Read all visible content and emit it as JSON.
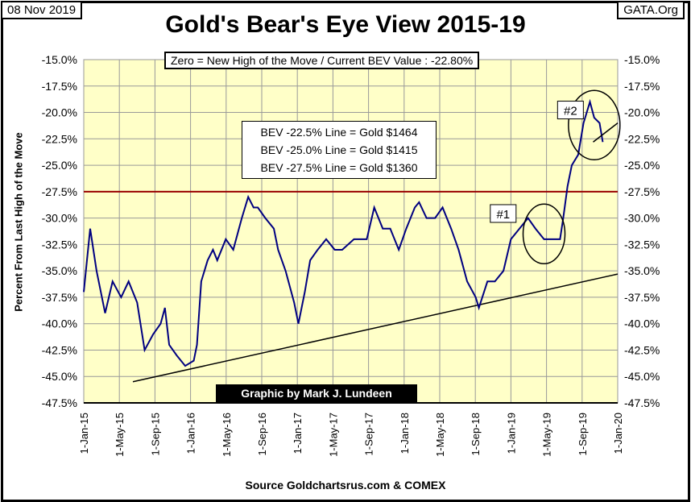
{
  "header": {
    "date": "08 Nov 2019",
    "site": "GATA.Org"
  },
  "info_box": "Zero = New High of the Move / Current  BEV Value : -22.80%",
  "bev_lines": [
    "BEV -22.5% Line = Gold $1464",
    "BEV -25.0% Line = Gold $1415",
    "BEV -27.5% Line = Gold $1360"
  ],
  "credit": "Graphic by Mark J. Lundeen",
  "chart_data": {
    "type": "line",
    "title": "Gold's Bear's Eye View 2015-19",
    "ylabel": "Percent From Last High of the Move",
    "xlabel": "Source Goldchartsrus.com & COMEX",
    "ylim": [
      -47.5,
      -15
    ],
    "yticks": [
      "-15.0%",
      "-17.5%",
      "-20.0%",
      "-22.5%",
      "-25.0%",
      "-27.5%",
      "-30.0%",
      "-32.5%",
      "-35.0%",
      "-37.5%",
      "-40.0%",
      "-42.5%",
      "-45.0%",
      "-47.5%"
    ],
    "xlim": [
      2015.0,
      2020.0
    ],
    "xticks": [
      "1-Jan-15",
      "1-May-15",
      "1-Sep-15",
      "1-Jan-16",
      "1-May-16",
      "1-Sep-16",
      "1-Jan-17",
      "1-May-17",
      "1-Sep-17",
      "1-Jan-18",
      "1-May-18",
      "1-Sep-18",
      "1-Jan-19",
      "1-May-19",
      "1-Sep-19",
      "1-Jan-20"
    ],
    "grid": true,
    "series": [
      {
        "name": "BEV",
        "color": "#000080",
        "x": [
          2015.0,
          2015.06,
          2015.12,
          2015.2,
          2015.27,
          2015.35,
          2015.42,
          2015.5,
          2015.57,
          2015.65,
          2015.72,
          2015.76,
          2015.8,
          2015.87,
          2015.95,
          2016.03,
          2016.06,
          2016.1,
          2016.16,
          2016.21,
          2016.25,
          2016.33,
          2016.4,
          2016.48,
          2016.54,
          2016.59,
          2016.63,
          2016.7,
          2016.78,
          2016.82,
          2016.89,
          2016.97,
          2017.01,
          2017.07,
          2017.12,
          2017.19,
          2017.27,
          2017.35,
          2017.42,
          2017.53,
          2017.65,
          2017.72,
          2017.8,
          2017.87,
          2017.95,
          2018.02,
          2018.1,
          2018.14,
          2018.21,
          2018.29,
          2018.36,
          2018.44,
          2018.51,
          2018.59,
          2018.67,
          2018.7,
          2018.78,
          2018.85,
          2018.93,
          2019.0,
          2019.08,
          2019.16,
          2019.23,
          2019.31,
          2019.38,
          2019.46,
          2019.49,
          2019.53,
          2019.57,
          2019.63,
          2019.68,
          2019.74,
          2019.78,
          2019.83,
          2019.86
        ],
        "y": [
          -37.0,
          -31.0,
          -35.0,
          -39.0,
          -36.0,
          -37.5,
          -36.0,
          -38.0,
          -42.5,
          -41.0,
          -40.0,
          -38.5,
          -42.0,
          -43.0,
          -44.0,
          -43.5,
          -42.0,
          -36.0,
          -34.0,
          -33.0,
          -34.0,
          -32.0,
          -33.0,
          -30.0,
          -28.0,
          -29.0,
          -29.0,
          -30.0,
          -31.0,
          -33.0,
          -35.0,
          -38.0,
          -40.0,
          -37.0,
          -34.0,
          -33.0,
          -32.0,
          -33.0,
          -33.0,
          -32.0,
          -32.0,
          -29.0,
          -31.0,
          -31.0,
          -33.0,
          -31.0,
          -29.0,
          -28.5,
          -30.0,
          -30.0,
          -29.0,
          -31.0,
          -33.0,
          -36.0,
          -37.5,
          -38.5,
          -36.0,
          -36.0,
          -35.0,
          -32.0,
          -31.0,
          -30.0,
          -31.0,
          -32.0,
          -32.0,
          -32.0,
          -30.0,
          -27.0,
          -25.0,
          -24.0,
          -21.0,
          -19.0,
          -20.5,
          -21.0,
          -22.8
        ]
      }
    ],
    "reference_line": {
      "y": -27.5,
      "color": "#990000"
    },
    "trend_line": {
      "x": [
        2015.46,
        2020.0
      ],
      "y": [
        -45.5,
        -35.3
      ]
    },
    "annotations": [
      {
        "text": "#1",
        "x": 2018.92,
        "y": -29.8
      },
      {
        "text": "#2",
        "x": 2019.55,
        "y": -20.0
      }
    ]
  }
}
